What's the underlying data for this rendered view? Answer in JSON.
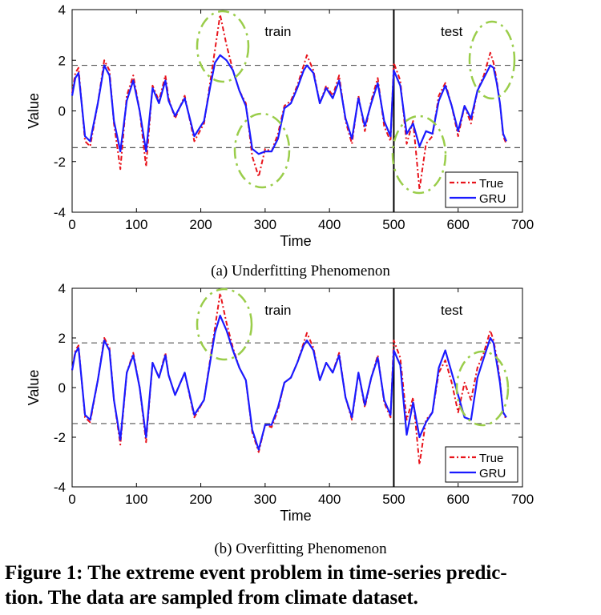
{
  "figure": {
    "caption_number": "Figure 1:",
    "caption_line1": " The extreme event problem in time-series predic-",
    "caption_line2": "tion. The data are sampled from climate dataset."
  },
  "chart_data": [
    {
      "type": "line",
      "panel_caption": "(a)  Underfitting Phenomenon",
      "xlabel": "Time",
      "ylabel": "Value",
      "xlim": [
        0,
        700
      ],
      "ylim": [
        -4,
        4
      ],
      "xticks": [
        "0",
        "100",
        "200",
        "300",
        "400",
        "500",
        "600",
        "700"
      ],
      "yticks": [
        "4",
        "2",
        "0",
        "-2",
        "-4"
      ],
      "grid": false,
      "legend_position": "bottom-right",
      "annotations": {
        "train": "train",
        "test": "test"
      },
      "split_x": 500,
      "threshold_lines": [
        1.8,
        -1.45
      ],
      "x": [
        0,
        5,
        10,
        20,
        28,
        40,
        50,
        58,
        65,
        75,
        85,
        95,
        105,
        115,
        125,
        135,
        145,
        150,
        160,
        175,
        190,
        205,
        215,
        222,
        230,
        240,
        250,
        260,
        270,
        280,
        290,
        300,
        310,
        320,
        330,
        340,
        350,
        360,
        365,
        375,
        385,
        395,
        405,
        415,
        425,
        435,
        445,
        455,
        465,
        475,
        485,
        495,
        500,
        510,
        520,
        530,
        540,
        550,
        560,
        570,
        580,
        590,
        600,
        610,
        620,
        630,
        640,
        650,
        655,
        660,
        665,
        670,
        675
      ],
      "series": [
        {
          "name": "True",
          "color": "#e8141c",
          "dash": "dashdot",
          "values": [
            0.7,
            1.5,
            1.7,
            -1.2,
            -1.4,
            0.3,
            2.0,
            1.6,
            -0.5,
            -2.3,
            0.6,
            1.4,
            0.0,
            -2.2,
            1.0,
            0.4,
            1.4,
            0.5,
            -0.3,
            0.6,
            -1.2,
            -0.5,
            1.2,
            2.4,
            3.8,
            2.6,
            1.6,
            0.8,
            0.3,
            -1.8,
            -2.6,
            -1.5,
            -1.6,
            -0.9,
            0.2,
            0.4,
            1.0,
            1.8,
            2.2,
            1.6,
            0.3,
            1.0,
            0.6,
            1.4,
            -0.4,
            -1.3,
            0.6,
            -0.8,
            0.4,
            1.3,
            -0.6,
            -1.2,
            1.9,
            1.2,
            -1.3,
            -0.4,
            -3.1,
            -1.3,
            -1.0,
            0.6,
            1.1,
            0.2,
            -1.0,
            0.2,
            -0.5,
            0.8,
            1.4,
            2.3,
            1.9,
            1.2,
            0.3,
            -1.0,
            -1.3
          ]
        },
        {
          "name": "GRU",
          "color": "#1a1aff",
          "dash": "solid",
          "values": [
            0.6,
            1.3,
            1.5,
            -1.0,
            -1.2,
            0.3,
            1.8,
            1.4,
            -0.4,
            -1.6,
            0.4,
            1.2,
            0.0,
            -1.6,
            0.9,
            0.3,
            1.2,
            0.4,
            -0.2,
            0.5,
            -1.0,
            -0.4,
            1.0,
            1.9,
            2.2,
            2.0,
            1.6,
            0.8,
            0.2,
            -1.5,
            -1.7,
            -1.6,
            -1.6,
            -1.1,
            0.1,
            0.3,
            0.9,
            1.6,
            1.8,
            1.5,
            0.3,
            0.9,
            0.5,
            1.2,
            -0.3,
            -1.1,
            0.5,
            -0.6,
            0.3,
            1.1,
            -0.4,
            -1.0,
            1.6,
            1.0,
            -0.9,
            -0.5,
            -1.4,
            -0.8,
            -0.9,
            0.4,
            1.0,
            0.2,
            -0.8,
            0.2,
            -0.3,
            0.8,
            1.3,
            1.8,
            1.7,
            1.1,
            0.3,
            -0.9,
            -1.2
          ]
        }
      ]
    },
    {
      "type": "line",
      "panel_caption": "(b)  Overfitting Phenomenon",
      "xlabel": "Time",
      "ylabel": "Value",
      "xlim": [
        0,
        700
      ],
      "ylim": [
        -4,
        4
      ],
      "xticks": [
        "0",
        "100",
        "200",
        "300",
        "400",
        "500",
        "600",
        "700"
      ],
      "yticks": [
        "4",
        "2",
        "0",
        "-2",
        "-4"
      ],
      "grid": false,
      "legend_position": "bottom-right",
      "annotations": {
        "train": "train",
        "test": "test"
      },
      "split_x": 500,
      "threshold_lines": [
        1.8,
        -1.45
      ],
      "x": [
        0,
        5,
        10,
        20,
        28,
        40,
        50,
        58,
        65,
        75,
        85,
        95,
        105,
        115,
        125,
        135,
        145,
        150,
        160,
        175,
        190,
        205,
        215,
        222,
        230,
        240,
        250,
        260,
        270,
        280,
        290,
        300,
        310,
        320,
        330,
        340,
        350,
        360,
        365,
        375,
        385,
        395,
        405,
        415,
        425,
        435,
        445,
        455,
        465,
        475,
        485,
        495,
        500,
        510,
        520,
        530,
        540,
        550,
        560,
        570,
        580,
        590,
        600,
        610,
        620,
        630,
        640,
        650,
        655,
        660,
        665,
        670,
        675
      ],
      "series": [
        {
          "name": "True",
          "color": "#e8141c",
          "dash": "dashdot",
          "values": [
            0.7,
            1.5,
            1.7,
            -1.2,
            -1.4,
            0.3,
            2.0,
            1.6,
            -0.5,
            -2.3,
            0.6,
            1.4,
            0.0,
            -2.2,
            1.0,
            0.4,
            1.4,
            0.5,
            -0.3,
            0.6,
            -1.2,
            -0.5,
            1.2,
            2.4,
            3.8,
            2.6,
            1.6,
            0.8,
            0.3,
            -1.8,
            -2.6,
            -1.5,
            -1.6,
            -0.9,
            0.2,
            0.4,
            1.0,
            1.8,
            2.2,
            1.6,
            0.3,
            1.0,
            0.6,
            1.4,
            -0.4,
            -1.3,
            0.6,
            -0.8,
            0.4,
            1.3,
            -0.6,
            -1.2,
            1.9,
            1.2,
            -1.3,
            -0.4,
            -3.1,
            -1.3,
            -1.0,
            0.6,
            1.1,
            0.2,
            -1.0,
            0.2,
            -0.5,
            0.8,
            1.4,
            2.3,
            1.9,
            1.2,
            0.3,
            -1.0,
            -1.3
          ]
        },
        {
          "name": "GRU",
          "color": "#1a1aff",
          "dash": "solid",
          "values": [
            0.7,
            1.4,
            1.6,
            -1.1,
            -1.3,
            0.3,
            1.9,
            1.5,
            -0.5,
            -2.1,
            0.6,
            1.3,
            0.0,
            -2.0,
            1.0,
            0.4,
            1.3,
            0.5,
            -0.3,
            0.6,
            -1.1,
            -0.5,
            1.1,
            2.2,
            2.9,
            2.3,
            1.5,
            0.8,
            0.3,
            -1.7,
            -2.5,
            -1.5,
            -1.5,
            -0.8,
            0.2,
            0.4,
            1.0,
            1.7,
            1.9,
            1.5,
            0.3,
            1.0,
            0.6,
            1.3,
            -0.4,
            -1.2,
            0.6,
            -0.7,
            0.4,
            1.2,
            -0.5,
            -1.1,
            1.5,
            0.9,
            -1.9,
            -0.6,
            -2.0,
            -1.4,
            -1.0,
            0.8,
            1.5,
            0.6,
            -0.3,
            -1.2,
            -1.3,
            0.4,
            1.2,
            2.0,
            1.8,
            1.0,
            0.2,
            -1.0,
            -1.2
          ]
        }
      ]
    }
  ]
}
